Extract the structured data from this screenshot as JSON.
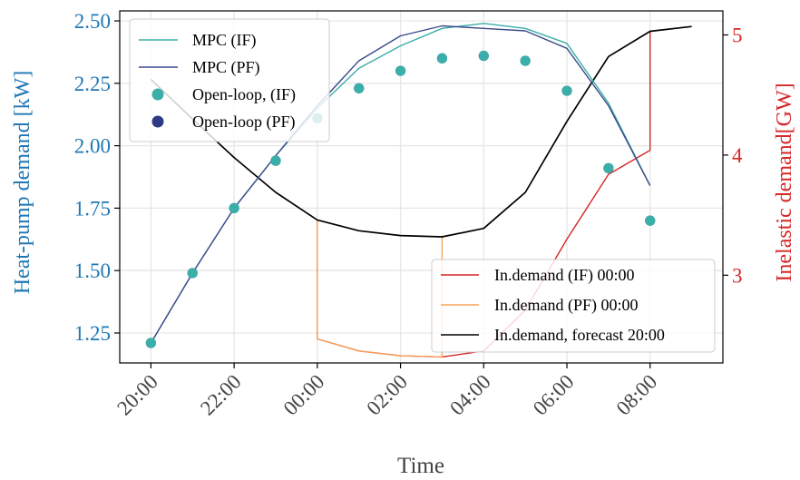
{
  "chart_data": {
    "type": "line",
    "xlabel": "Time",
    "ylabel_left": "Heat-pump demand [kW]",
    "ylabel_right": "Inelastic demand[GW]",
    "x_ticks": [
      "20:00",
      "22:00",
      "00:00",
      "02:00",
      "04:00",
      "06:00",
      "08:00"
    ],
    "x_tick_hours": [
      0,
      2,
      4,
      6,
      8,
      10,
      12
    ],
    "xlim_hours": [
      -0.75,
      13.75
    ],
    "ylim_left": [
      1.13,
      2.54
    ],
    "yticks_left": [
      "1.25",
      "1.50",
      "1.75",
      "2.00",
      "2.25",
      "2.50"
    ],
    "yticks_left_values": [
      1.25,
      1.5,
      1.75,
      2.0,
      2.25,
      2.5
    ],
    "ylim_right": [
      2.27,
      5.2
    ],
    "yticks_right": [
      "3",
      "4",
      "5"
    ],
    "yticks_right_values": [
      3,
      4,
      5
    ],
    "grid": true,
    "colors": {
      "mpc_if": "#3aaea8",
      "mpc_pf": "#3b4a8a",
      "open_if": "#3aaea8",
      "open_pf": "#2e3a84",
      "indemand_if": "#d62728",
      "indemand_pf": "#f7a35c",
      "forecast": "#000000",
      "left_axis": "#1f77b4",
      "right_axis": "#d62728"
    },
    "series": [
      {
        "name": "MPC (IF)",
        "axis": "left",
        "kind": "line",
        "color_key": "mpc_if",
        "x": [
          0,
          1,
          2,
          3,
          4,
          5,
          6,
          7,
          8,
          9,
          10,
          11,
          12
        ],
        "y": [
          1.21,
          1.49,
          1.75,
          1.96,
          2.15,
          2.31,
          2.4,
          2.47,
          2.49,
          2.47,
          2.41,
          2.17,
          1.84
        ]
      },
      {
        "name": "MPC (PF)",
        "axis": "left",
        "kind": "line",
        "color_key": "mpc_pf",
        "x": [
          0,
          1,
          2,
          3,
          4,
          5,
          6,
          7,
          8,
          9,
          10,
          11,
          12
        ],
        "y": [
          1.21,
          1.49,
          1.75,
          1.96,
          2.16,
          2.34,
          2.44,
          2.48,
          2.47,
          2.46,
          2.39,
          2.16,
          1.84
        ]
      },
      {
        "name": "Open-loop, (IF)",
        "axis": "left",
        "kind": "scatter",
        "color_key": "open_if",
        "x": [
          0,
          1,
          2,
          3,
          4,
          5,
          6,
          7,
          8,
          9,
          10,
          11,
          12
        ],
        "y": [
          1.21,
          1.49,
          1.75,
          1.94,
          2.11,
          2.23,
          2.3,
          2.35,
          2.36,
          2.34,
          2.22,
          1.91,
          1.7
        ]
      },
      {
        "name": "Open-loop (PF)",
        "axis": "left",
        "kind": "scatter",
        "color_key": "open_pf",
        "x": [
          0,
          1,
          2,
          3,
          4,
          5,
          6,
          7,
          8,
          9,
          10,
          11,
          12
        ],
        "y": [
          1.21,
          1.49,
          1.75,
          1.94,
          2.11,
          2.23,
          2.3,
          2.35,
          2.36,
          2.34,
          2.22,
          1.91,
          1.7
        ]
      },
      {
        "name": "In.demand (IF) 00:00",
        "axis": "right",
        "kind": "line",
        "color_key": "indemand_if",
        "x": [
          4,
          4,
          5,
          6,
          7,
          7,
          8,
          9,
          10,
          11,
          12,
          12
        ],
        "y": [
          3.46,
          2.47,
          2.37,
          2.33,
          2.32,
          2.32,
          2.37,
          2.71,
          3.3,
          3.84,
          4.04,
          5.03
        ]
      },
      {
        "name": "In.demand (PF) 00:00",
        "axis": "right",
        "kind": "line",
        "color_key": "indemand_pf",
        "x": [
          4,
          4,
          5,
          6,
          7,
          7
        ],
        "y": [
          3.46,
          2.47,
          2.37,
          2.33,
          2.32,
          3.33
        ]
      },
      {
        "name": "In.demand, forecast 20:00",
        "axis": "right",
        "kind": "line",
        "color_key": "forecast",
        "x": [
          0,
          1,
          2,
          3,
          4,
          5,
          6,
          7,
          8,
          9,
          10,
          11,
          12,
          13
        ],
        "y": [
          4.63,
          4.3,
          3.98,
          3.69,
          3.46,
          3.37,
          3.33,
          3.32,
          3.39,
          3.69,
          4.28,
          4.82,
          5.03,
          5.07
        ]
      }
    ],
    "legend_left": [
      "MPC (IF)",
      "MPC (PF)",
      "Open-loop, (IF)",
      "Open-loop (PF)"
    ],
    "legend_right": [
      "In.demand (IF) 00:00",
      "In.demand (PF) 00:00",
      "In.demand, forecast 20:00"
    ]
  }
}
